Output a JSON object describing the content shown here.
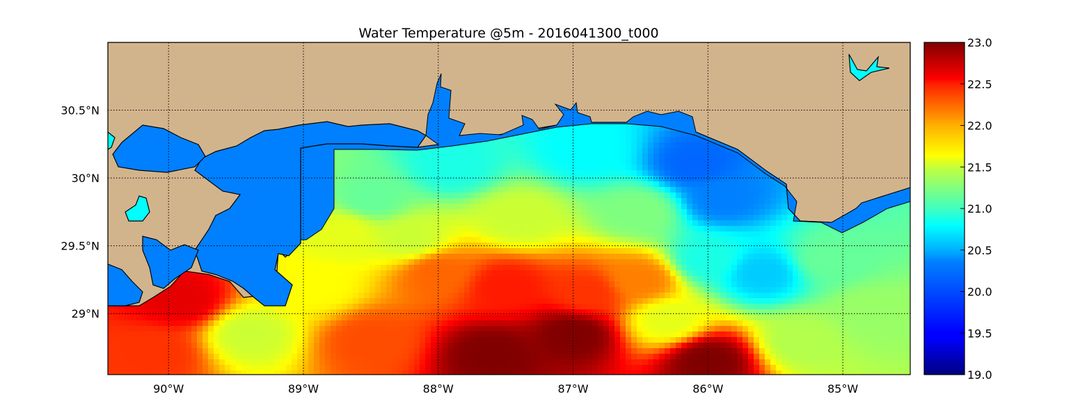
{
  "chart_data": {
    "type": "heatmap",
    "title": "Water Temperature @5m - 2016041300_t000",
    "xlabel": "",
    "ylabel": "",
    "xlim": [
      -90.45,
      -84.5
    ],
    "ylim": [
      28.55,
      31.0
    ],
    "x_ticks": [
      {
        "value": -90,
        "label": "90°W"
      },
      {
        "value": -89,
        "label": "89°W"
      },
      {
        "value": -88,
        "label": "88°W"
      },
      {
        "value": -87,
        "label": "87°W"
      },
      {
        "value": -86,
        "label": "86°W"
      },
      {
        "value": -85,
        "label": "85°W"
      }
    ],
    "y_ticks": [
      {
        "value": 30.5,
        "label": "30.5°N"
      },
      {
        "value": 30.0,
        "label": "30°N"
      },
      {
        "value": 29.5,
        "label": "29.5°N"
      },
      {
        "value": 29.0,
        "label": "29°N"
      }
    ],
    "grid": "dotted",
    "colormap": "jet",
    "colorbar": {
      "min": 19.0,
      "max": 23.0,
      "ticks": [
        "23.0",
        "22.5",
        "22.0",
        "21.5",
        "21.0",
        "20.5",
        "20.0",
        "19.5",
        "19.0"
      ]
    },
    "land_color": "#d2b48c",
    "inland_water_color": "#0080ff",
    "lake_color": "#00ffff",
    "temperature_regions": [
      {
        "lon": -89.2,
        "lat": 30.05,
        "temp": 21.0
      },
      {
        "lon": -88.5,
        "lat": 29.85,
        "temp": 20.9
      },
      {
        "lon": -87.9,
        "lat": 30.1,
        "temp": 20.6
      },
      {
        "lon": -86.9,
        "lat": 30.2,
        "temp": 20.5
      },
      {
        "lon": -86.1,
        "lat": 30.1,
        "temp": 19.9
      },
      {
        "lon": -85.9,
        "lat": 29.85,
        "temp": 20.0
      },
      {
        "lon": -85.6,
        "lat": 29.3,
        "temp": 20.3
      },
      {
        "lon": -86.0,
        "lat": 29.4,
        "temp": 20.6
      },
      {
        "lon": -85.1,
        "lat": 29.4,
        "temp": 20.9
      },
      {
        "lon": -84.8,
        "lat": 29.0,
        "temp": 21.1
      },
      {
        "lon": -85.3,
        "lat": 28.8,
        "temp": 21.2
      },
      {
        "lon": -86.5,
        "lat": 29.75,
        "temp": 21.0
      },
      {
        "lon": -87.4,
        "lat": 29.7,
        "temp": 21.3
      },
      {
        "lon": -88.2,
        "lat": 29.55,
        "temp": 21.3
      },
      {
        "lon": -88.0,
        "lat": 29.3,
        "temp": 22.1
      },
      {
        "lon": -87.5,
        "lat": 29.2,
        "temp": 22.4
      },
      {
        "lon": -86.9,
        "lat": 29.15,
        "temp": 22.3
      },
      {
        "lon": -86.5,
        "lat": 29.25,
        "temp": 22.0
      },
      {
        "lon": -87.0,
        "lat": 28.85,
        "temp": 23.0
      },
      {
        "lon": -87.6,
        "lat": 28.7,
        "temp": 23.0
      },
      {
        "lon": -86.0,
        "lat": 28.65,
        "temp": 23.0
      },
      {
        "lon": -86.3,
        "lat": 28.95,
        "temp": 21.4
      },
      {
        "lon": -88.9,
        "lat": 29.2,
        "temp": 21.5
      },
      {
        "lon": -88.5,
        "lat": 28.8,
        "temp": 22.2
      },
      {
        "lon": -89.4,
        "lat": 28.85,
        "temp": 21.3
      },
      {
        "lon": -90.1,
        "lat": 28.7,
        "temp": 22.3
      },
      {
        "lon": -89.9,
        "lat": 29.1,
        "temp": 22.6
      },
      {
        "lon": -88.7,
        "lat": 29.6,
        "temp": 21.4
      }
    ]
  }
}
